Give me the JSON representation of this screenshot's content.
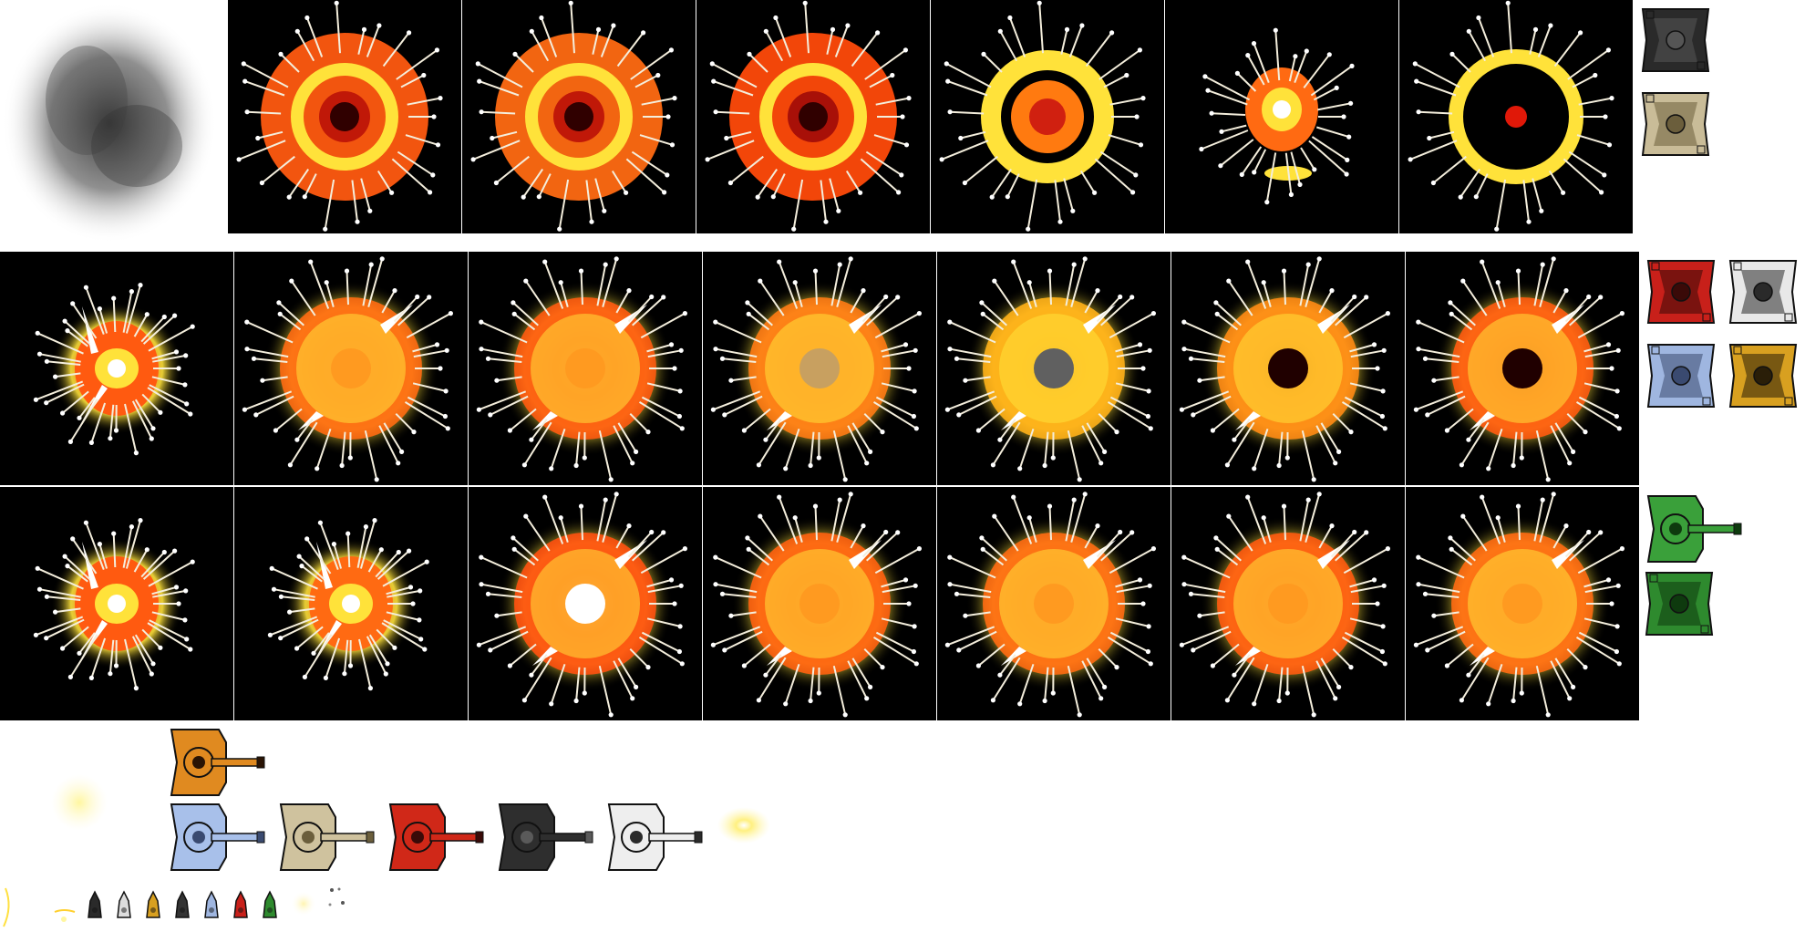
{
  "sprite_sheet": {
    "smoke_cloud": {
      "icon": "smoke-cloud",
      "color": "#3a3a3a"
    },
    "explosion_rows": [
      {
        "row": 1,
        "frames": [
          {
            "style": "ring-dense",
            "ring": "#ffe23a",
            "body": "#ff5a10",
            "core": "#c01808"
          },
          {
            "style": "ring-dense",
            "ring": "#ffe23a",
            "body": "#ff6a12",
            "core": "#c01808"
          },
          {
            "style": "ring-dense",
            "ring": "#ffe23a",
            "body": "#ff4a0a",
            "core": "#a81008"
          },
          {
            "style": "ring-thin",
            "ring": "#ffe23a",
            "body": "#ff7a10",
            "core": "#d02010"
          },
          {
            "style": "small-blob",
            "ring": "#ffe23a",
            "body": "#ff6a12",
            "core": "#ffffff"
          },
          {
            "style": "ring-hollow",
            "ring": "#ffe23a",
            "body": "#ffc81a",
            "core": "#e01808"
          }
        ]
      },
      {
        "row": 2,
        "frames": [
          {
            "style": "burst-small",
            "ring": "#ffe23a",
            "body": "#ff5a10",
            "core": "#ffffff"
          },
          {
            "style": "burst",
            "ring": "#ffe23a",
            "body": "#ff6a12",
            "core": "#ff9a20"
          },
          {
            "style": "burst",
            "ring": "#ffe23a",
            "body": "#ff5a10",
            "core": "#ff9a20"
          },
          {
            "style": "burst",
            "ring": "#ffe23a",
            "body": "#ff7a14",
            "core": "#c8a060"
          },
          {
            "style": "burst",
            "ring": "#ffe23a",
            "body": "#ffb018",
            "core": "#606060"
          },
          {
            "style": "burst",
            "ring": "#ffe23a",
            "body": "#ff8a14",
            "core": "#200000"
          },
          {
            "style": "burst",
            "ring": "#ffe23a",
            "body": "#ff5a10",
            "core": "#200000"
          }
        ]
      },
      {
        "row": 3,
        "frames": [
          {
            "style": "burst-small",
            "ring": "#ffe23a",
            "body": "#ff5a10",
            "core": "#ffffff"
          },
          {
            "style": "burst-small",
            "ring": "#ffe23a",
            "body": "#ff6a12",
            "core": "#ffffff"
          },
          {
            "style": "burst",
            "ring": "#ffe23a",
            "body": "#ff5010",
            "core": "#ffffff"
          },
          {
            "style": "burst",
            "ring": "#ffe23a",
            "body": "#ff6010",
            "core": "#ff9a20"
          },
          {
            "style": "burst",
            "ring": "#ffe23a",
            "body": "#ff6a12",
            "core": "#ff9a20"
          },
          {
            "style": "burst",
            "ring": "#ffe23a",
            "body": "#ff5a10",
            "core": "#ff9a20"
          },
          {
            "style": "burst",
            "ring": "#ffe23a",
            "body": "#ff6a12",
            "core": "#ff9a20"
          }
        ]
      }
    ],
    "tank_hulls": [
      {
        "skin": "black",
        "color": "#2a2a2a",
        "accent": "#555555"
      },
      {
        "skin": "desert",
        "color": "#c9bc98",
        "accent": "#6b5e3c"
      },
      {
        "skin": "red",
        "color": "#c8201a",
        "accent": "#3a0a08"
      },
      {
        "skin": "zebra",
        "color": "#e8e8e8",
        "accent": "#2a2a2a"
      },
      {
        "skin": "blue",
        "color": "#9fb6e0",
        "accent": "#3a4a70"
      },
      {
        "skin": "tiger",
        "color": "#d8a020",
        "accent": "#2a1e08"
      },
      {
        "skin": "green",
        "color": "#2e8a2e",
        "accent": "#0e3a0e"
      }
    ],
    "tanks_with_turret": [
      {
        "skin": "green",
        "color": "#3aa03a",
        "accent": "#0e3a0e"
      },
      {
        "skin": "tiger",
        "color": "#e08a20",
        "accent": "#2a1404"
      },
      {
        "skin": "blue",
        "color": "#a8c0ea",
        "accent": "#3a4a70"
      },
      {
        "skin": "desert",
        "color": "#cfc29e",
        "accent": "#6b5e3c"
      },
      {
        "skin": "red",
        "color": "#d02818",
        "accent": "#3a0a08"
      },
      {
        "skin": "black",
        "color": "#2e2e2e",
        "accent": "#5a5a5a"
      },
      {
        "skin": "zebra",
        "color": "#eeeeee",
        "accent": "#2a2a2a"
      }
    ],
    "mini_tank_icons": [
      {
        "skin": "black",
        "color": "#2a2a2a"
      },
      {
        "skin": "zebra",
        "color": "#dddddd"
      },
      {
        "skin": "tiger",
        "color": "#d8a020"
      },
      {
        "skin": "black",
        "color": "#333333"
      },
      {
        "skin": "blue",
        "color": "#9fb6e0"
      },
      {
        "skin": "red",
        "color": "#c8201a"
      },
      {
        "skin": "green",
        "color": "#2e8a2e"
      }
    ],
    "effects": {
      "glow": {
        "icon": "glow-orb",
        "color": "#fff6a0"
      },
      "muzzle_flash": {
        "icon": "muzzle-flash",
        "color": "#fff4a0"
      },
      "small_glow": {
        "icon": "small-glow",
        "color": "#fff8c0"
      },
      "debris": {
        "icon": "debris",
        "color": "#555555"
      },
      "flame_strip": {
        "icon": "flame-strip",
        "color": "#ffe040"
      }
    }
  }
}
